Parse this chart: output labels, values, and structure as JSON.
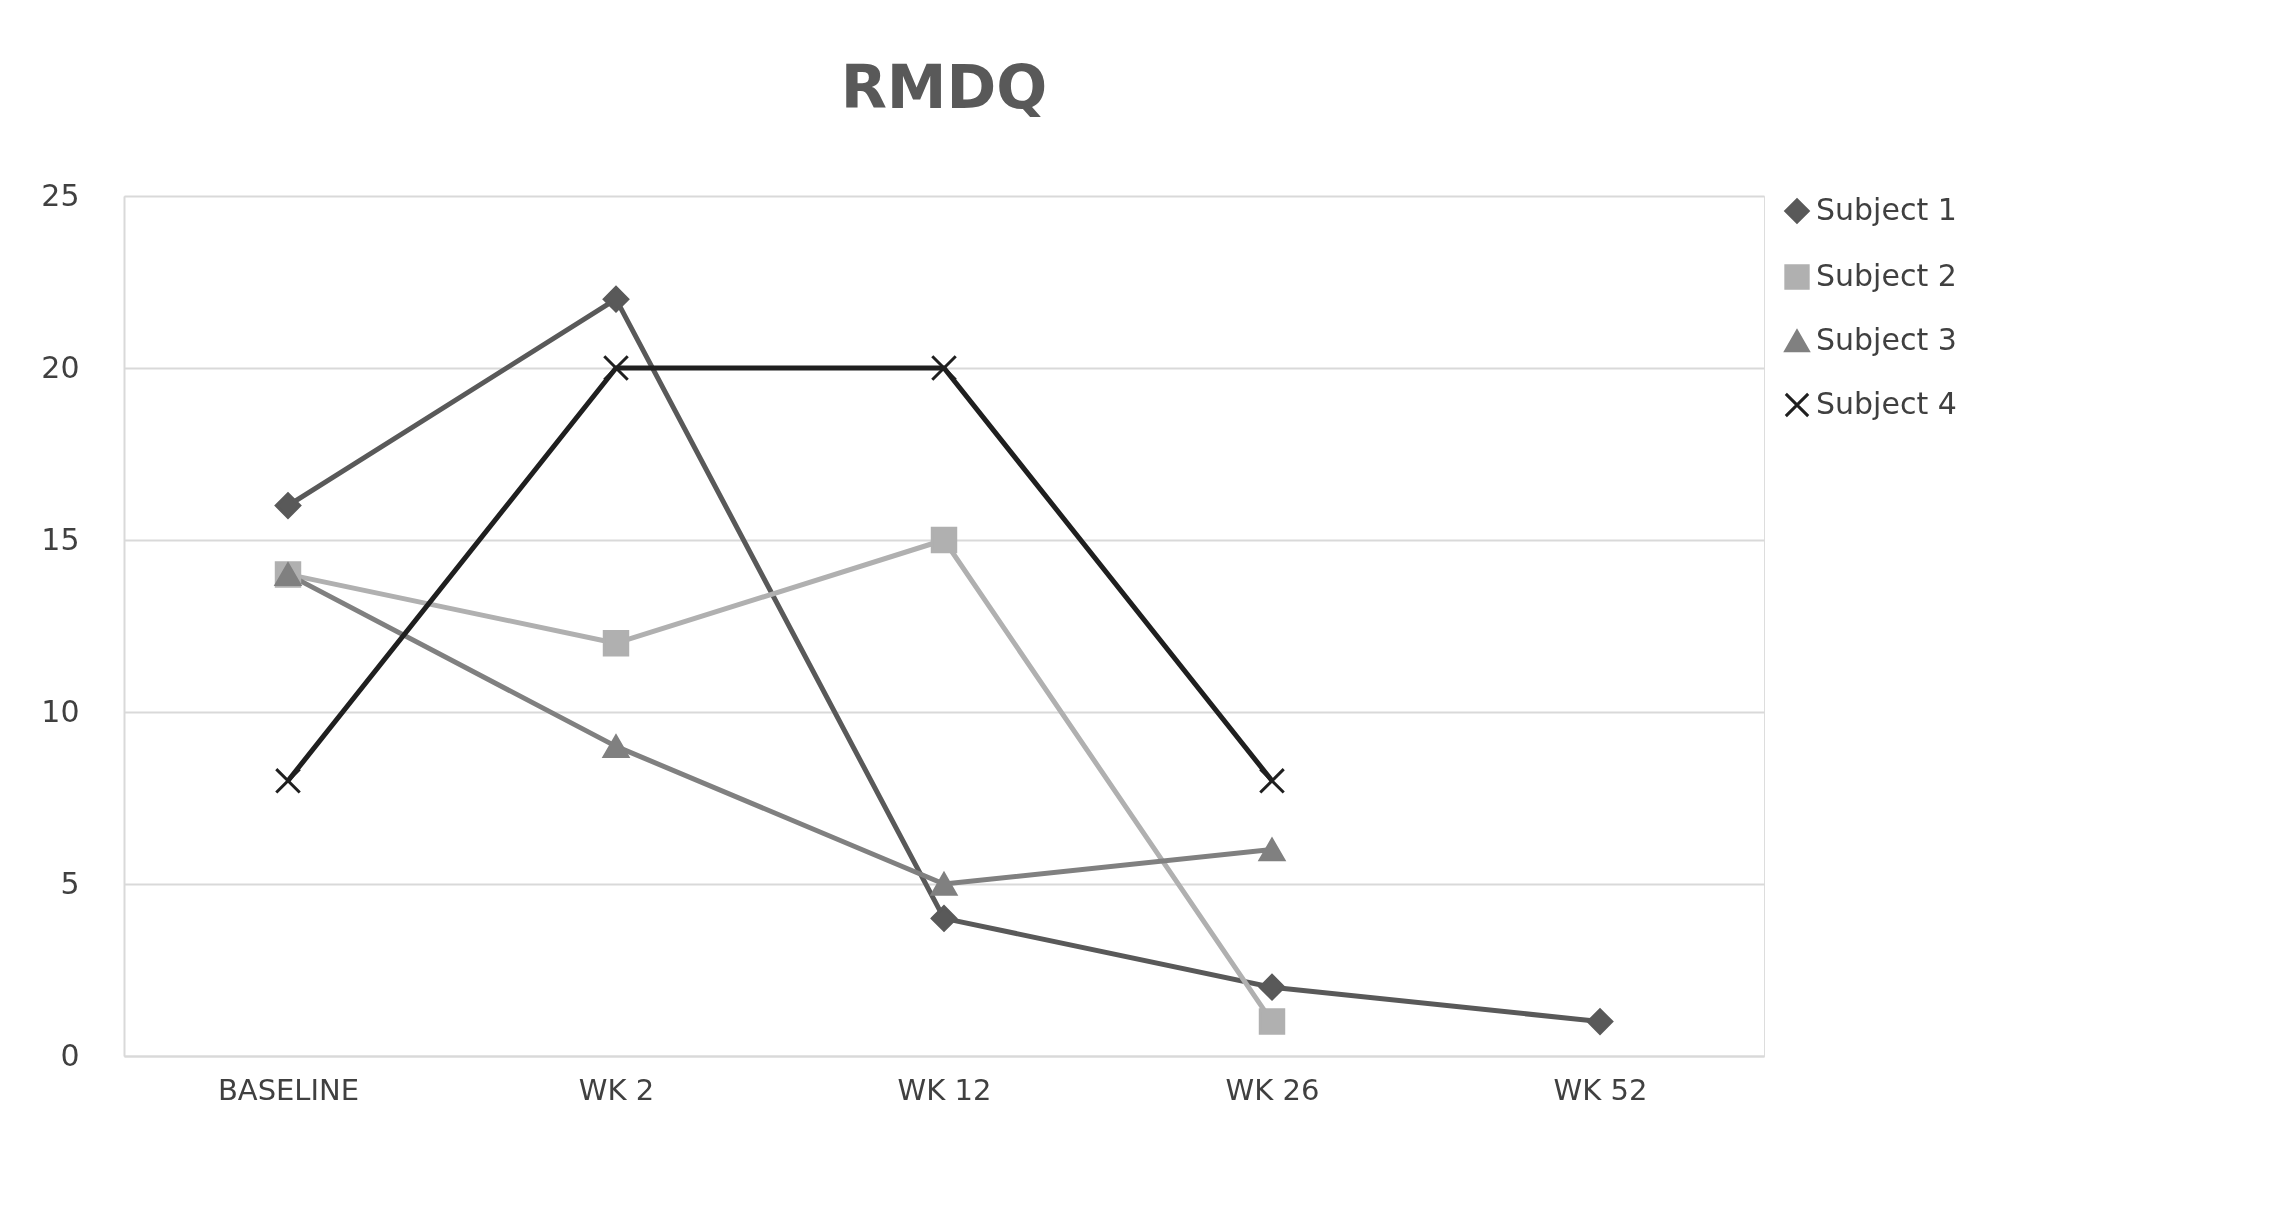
{
  "chart_data": {
    "type": "line",
    "title": "RMDQ",
    "categories": [
      "BASELINE",
      "WK 2",
      "WK 12",
      "WK 26",
      "WK 52"
    ],
    "series": [
      {
        "name": "Subject 1",
        "color": "#595959",
        "marker": "diamond",
        "values": [
          16,
          22,
          4,
          2,
          1
        ]
      },
      {
        "name": "Subject 2",
        "color": "#b0b0b0",
        "marker": "square",
        "values": [
          14,
          12,
          15,
          1,
          null
        ]
      },
      {
        "name": "Subject 3",
        "color": "#808080",
        "marker": "triangle",
        "values": [
          14,
          9,
          5,
          6,
          null
        ]
      },
      {
        "name": "Subject 4",
        "color": "#1f1f1f",
        "marker": "cross",
        "values": [
          8,
          20,
          20,
          8,
          null
        ]
      }
    ],
    "ylim": [
      0,
      25
    ],
    "yticks": [
      0,
      5,
      10,
      15,
      20,
      25
    ],
    "grid": "y",
    "legend": "right",
    "line_style": "solid"
  }
}
